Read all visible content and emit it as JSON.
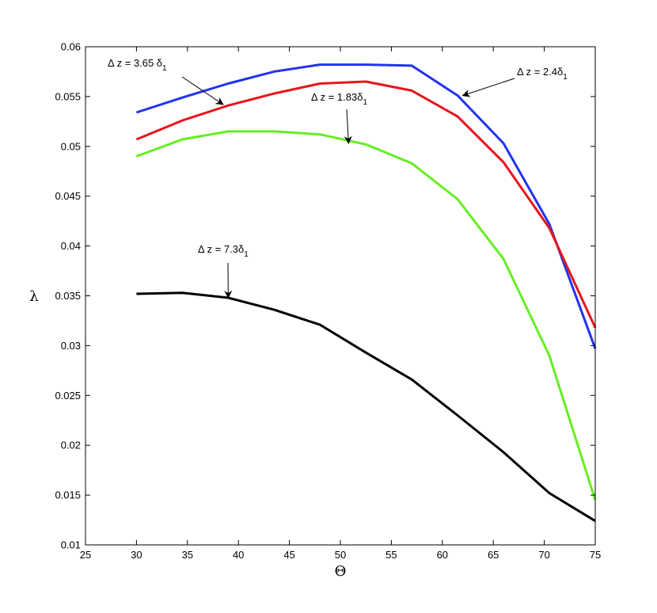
{
  "chart_data": {
    "type": "line",
    "title": "",
    "xlabel": "Θ",
    "ylabel": "λ",
    "xlim": [
      25,
      75
    ],
    "ylim": [
      0.01,
      0.06
    ],
    "grid": false,
    "xticks": [
      25,
      30,
      35,
      40,
      45,
      50,
      55,
      60,
      65,
      70,
      75
    ],
    "xtick_labels": [
      "25",
      "30",
      "35",
      "40",
      "45",
      "50",
      "55",
      "60",
      "65",
      "70",
      "75"
    ],
    "yticks": [
      0.01,
      0.015,
      0.02,
      0.025,
      0.03,
      0.035,
      0.04,
      0.045,
      0.05,
      0.055,
      0.06
    ],
    "ytick_labels": [
      "0.01",
      "0.015",
      "0.02",
      "0.025",
      "0.03",
      "0.035",
      "0.04",
      "0.045",
      "0.05",
      "0.055",
      "0.06"
    ],
    "series": [
      {
        "name": "Δ z = 2.4δ1",
        "color": "#2233ee",
        "x": [
          30,
          34.5,
          39,
          43.5,
          48,
          52.5,
          57,
          61.5,
          66,
          70.5,
          75
        ],
        "values": [
          0.0534,
          0.0549,
          0.0563,
          0.0575,
          0.0582,
          0.0582,
          0.0581,
          0.0551,
          0.0503,
          0.0422,
          0.0297
        ]
      },
      {
        "name": "Δ z = 3.65 δ1",
        "color": "#e8141c",
        "x": [
          30,
          34.5,
          39,
          43.5,
          48,
          52.5,
          57,
          61.5,
          66,
          70.5,
          75
        ],
        "values": [
          0.0507,
          0.0526,
          0.0541,
          0.0553,
          0.0563,
          0.0565,
          0.0556,
          0.053,
          0.0484,
          0.0418,
          0.0318
        ]
      },
      {
        "name": "Δ z = 1.83δ1",
        "color": "#66ee22",
        "x": [
          30,
          34.5,
          39,
          43.5,
          48,
          52.5,
          57,
          61.5,
          66,
          70.5,
          75
        ],
        "values": [
          0.049,
          0.0507,
          0.0515,
          0.0515,
          0.0512,
          0.0502,
          0.0483,
          0.0447,
          0.0387,
          0.029,
          0.0145
        ]
      },
      {
        "name": "Δ z = 7.3δ1",
        "color": "#000000",
        "x": [
          30,
          34.5,
          39,
          43.5,
          48,
          52.5,
          57,
          61.5,
          66,
          70.5,
          75
        ],
        "values": [
          0.0352,
          0.0353,
          0.0348,
          0.0336,
          0.0321,
          0.0293,
          0.0266,
          0.023,
          0.0193,
          0.0152,
          0.0124
        ]
      }
    ],
    "annotations": [
      {
        "main": "Δ z = 3.65 δ",
        "sub": "1",
        "target_x": 38.5,
        "target_y": 0.0542
      },
      {
        "main": "Δ z = 2.4δ",
        "sub": "1",
        "target_x": 62,
        "target_y": 0.0551
      },
      {
        "main": "Δ z = 1.83δ",
        "sub": "1",
        "target_x": 50.8,
        "target_y": 0.0503
      },
      {
        "main": "Δ z = 7.3δ",
        "sub": "1",
        "target_x": 39,
        "target_y": 0.0348
      }
    ]
  }
}
